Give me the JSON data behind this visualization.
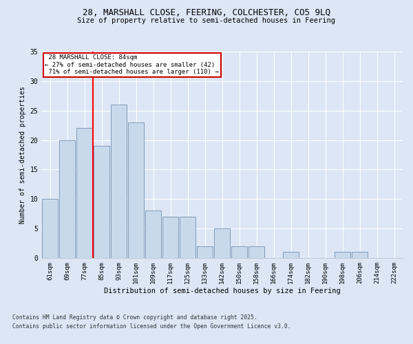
{
  "title_line1": "28, MARSHALL CLOSE, FEERING, COLCHESTER, CO5 9LQ",
  "title_line2": "Size of property relative to semi-detached houses in Feering",
  "xlabel": "Distribution of semi-detached houses by size in Feering",
  "ylabel": "Number of semi-detached properties",
  "categories": [
    "61sqm",
    "69sqm",
    "77sqm",
    "85sqm",
    "93sqm",
    "101sqm",
    "109sqm",
    "117sqm",
    "125sqm",
    "133sqm",
    "142sqm",
    "150sqm",
    "158sqm",
    "166sqm",
    "174sqm",
    "182sqm",
    "190sqm",
    "198sqm",
    "206sqm",
    "214sqm",
    "222sqm"
  ],
  "values": [
    10,
    20,
    22,
    19,
    26,
    23,
    8,
    7,
    7,
    2,
    5,
    2,
    2,
    0,
    1,
    0,
    0,
    1,
    1,
    0,
    0
  ],
  "bar_color": "#c9d9ec",
  "bar_edge_color": "#7090b0",
  "subject_label": "28 MARSHALL CLOSE: 84sqm",
  "pct_smaller": 27,
  "count_smaller": 42,
  "pct_larger": 71,
  "count_larger": 110,
  "annotation_box_color": "#cc0000",
  "background_color": "#dce6f5",
  "grid_color": "#ffffff",
  "ylim": [
    0,
    35
  ],
  "yticks": [
    0,
    5,
    10,
    15,
    20,
    25,
    30,
    35
  ],
  "footer_line1": "Contains HM Land Registry data © Crown copyright and database right 2025.",
  "footer_line2": "Contains public sector information licensed under the Open Government Licence v3.0."
}
